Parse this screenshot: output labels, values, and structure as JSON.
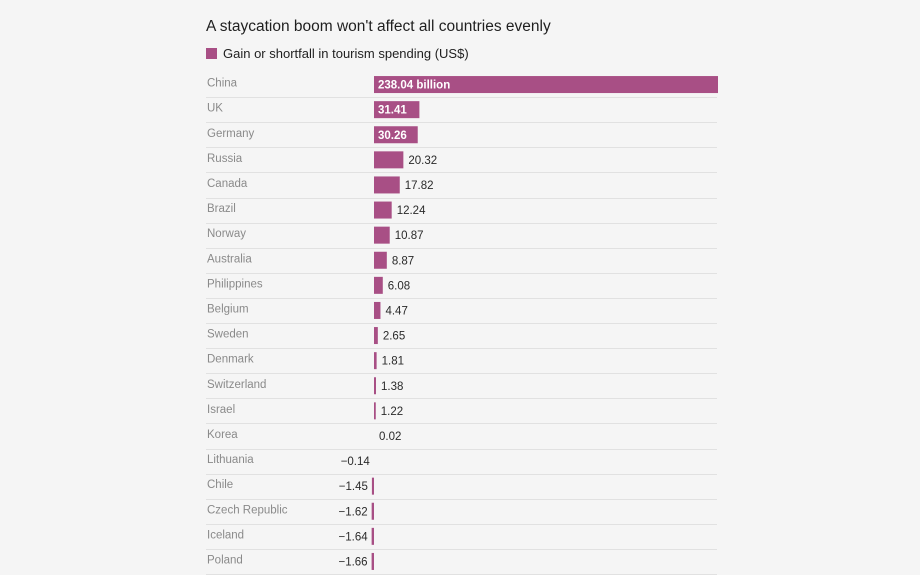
{
  "chart_data": {
    "type": "bar",
    "orientation": "horizontal",
    "title": "A staycation boom won't affect all countries evenly",
    "legend": [
      "Gain or shortfall in tourism spending (US$)"
    ],
    "legend_position": "top-left",
    "bar_color": "#a84f85",
    "categories": [
      "China",
      "UK",
      "Germany",
      "Russia",
      "Canada",
      "Brazil",
      "Norway",
      "Australia",
      "Philippines",
      "Belgium",
      "Sweden",
      "Denmark",
      "Switzerland",
      "Israel",
      "Korea",
      "Lithuania",
      "Chile",
      "Czech Republic",
      "Iceland",
      "Poland"
    ],
    "values": [
      238.04,
      31.41,
      30.26,
      20.32,
      17.82,
      12.24,
      10.87,
      8.87,
      6.08,
      4.47,
      2.65,
      1.81,
      1.38,
      1.22,
      0.02,
      -0.14,
      -1.45,
      -1.62,
      -1.64,
      -1.66
    ],
    "value_labels": [
      "238.04 billion",
      "31.41",
      "30.26",
      "20.32",
      "17.82",
      "12.24",
      "10.87",
      "8.87",
      "6.08",
      "4.47",
      "2.65",
      "1.81",
      "1.38",
      "1.22",
      "0.02",
      "−0.14",
      "−1.45",
      "−1.62",
      "−1.64",
      "−1.66"
    ],
    "label_inside": [
      true,
      true,
      true,
      false,
      false,
      false,
      false,
      false,
      false,
      false,
      false,
      false,
      false,
      false,
      false,
      false,
      false,
      false,
      false,
      false
    ],
    "grid": "horizontal row separators",
    "xlim": [
      -5.3,
      238.04
    ]
  }
}
